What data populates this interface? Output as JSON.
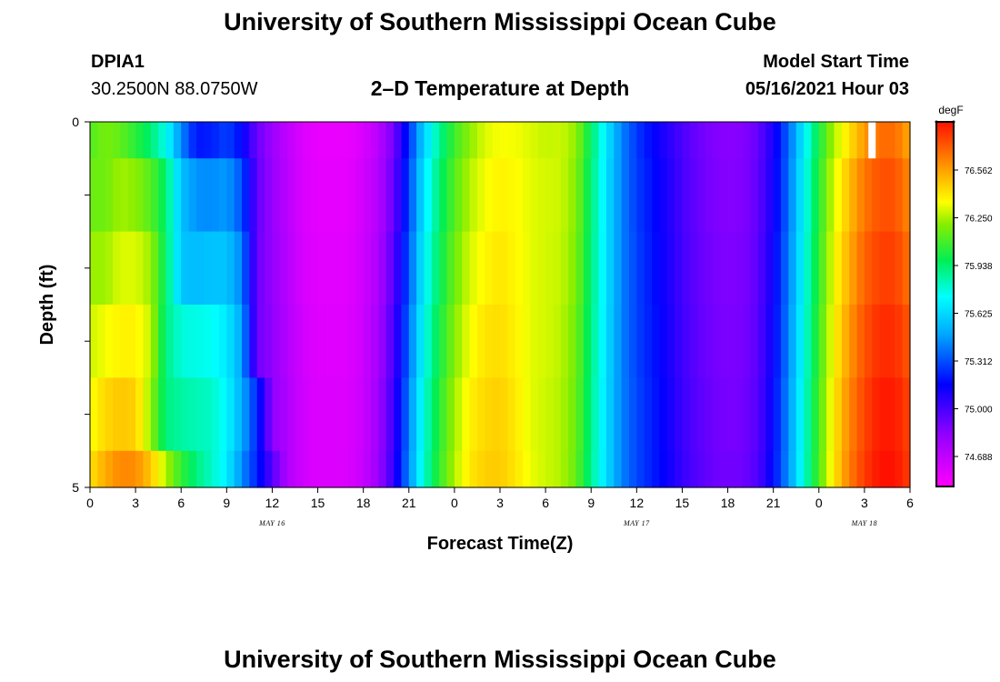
{
  "header": {
    "title_top": "University of Southern Mississippi Ocean Cube",
    "station_id": "DPIA1",
    "station_coords": "30.2500N  88.0750W",
    "plot_title": "2–D Temperature at Depth",
    "model_label": "Model Start Time",
    "model_time": "05/16/2021 Hour 03",
    "title_bottom": "University of Southern Mississippi Ocean Cube"
  },
  "chart_data": {
    "type": "heatmap",
    "xlabel": "Forecast Time(Z)",
    "ylabel": "Depth (ft)",
    "xlim": [
      0,
      54
    ],
    "ylim": [
      5,
      0
    ],
    "x_ticks": [
      {
        "hour": 0,
        "label": "0"
      },
      {
        "hour": 3,
        "label": "3"
      },
      {
        "hour": 6,
        "label": "6"
      },
      {
        "hour": 9,
        "label": "9"
      },
      {
        "hour": 12,
        "label": "12"
      },
      {
        "hour": 15,
        "label": "15"
      },
      {
        "hour": 18,
        "label": "18"
      },
      {
        "hour": 21,
        "label": "21"
      },
      {
        "hour": 24,
        "label": "0"
      },
      {
        "hour": 27,
        "label": "3"
      },
      {
        "hour": 30,
        "label": "6"
      },
      {
        "hour": 33,
        "label": "9"
      },
      {
        "hour": 36,
        "label": "12"
      },
      {
        "hour": 39,
        "label": "15"
      },
      {
        "hour": 42,
        "label": "18"
      },
      {
        "hour": 45,
        "label": "21"
      },
      {
        "hour": 48,
        "label": "0"
      },
      {
        "hour": 51,
        "label": "3"
      },
      {
        "hour": 54,
        "label": "6"
      }
    ],
    "date_labels": [
      {
        "hour": 12,
        "label": "MAY 16"
      },
      {
        "hour": 36,
        "label": "MAY 17"
      },
      {
        "hour": 51,
        "label": "MAY 18"
      }
    ],
    "y_tick_labels": [
      {
        "depth": 0,
        "label": "0"
      },
      {
        "depth": 5,
        "label": "5"
      }
    ],
    "y_minor_ticks": [
      1,
      2,
      3,
      4
    ],
    "depth_levels": [
      0.25,
      1.25,
      2.25,
      3.25,
      4.25,
      4.75
    ],
    "hours": [
      0,
      1,
      2,
      3,
      4,
      5,
      6,
      7,
      8,
      9,
      10,
      11,
      12,
      13,
      14,
      15,
      16,
      17,
      18,
      19,
      20,
      21,
      22,
      23,
      24,
      25,
      26,
      27,
      28,
      29,
      30,
      31,
      32,
      33,
      34,
      35,
      36,
      37,
      38,
      39,
      40,
      41,
      42,
      43,
      44,
      45,
      46,
      47,
      48,
      49,
      50,
      51,
      52,
      53,
      54
    ],
    "values_degF": [
      [
        76.25,
        76.32,
        76.28,
        76.18,
        76.07,
        75.89,
        75.56,
        75.33,
        75.35,
        75.42,
        75.3,
        75.05,
        74.93,
        74.82,
        74.73,
        74.69,
        74.69,
        74.69,
        74.74,
        74.84,
        75.03,
        75.38,
        75.74,
        76.02,
        76.22,
        76.35,
        76.45,
        76.49,
        76.48,
        76.45,
        76.42,
        76.43,
        76.36,
        76.09,
        75.81,
        75.55,
        75.4,
        75.3,
        75.21,
        75.12,
        75.05,
        75.0,
        74.98,
        74.99,
        75.06,
        75.24,
        75.49,
        75.82,
        76.15,
        76.4,
        76.56,
        76.72,
        76.82,
        76.82,
        76.68
      ],
      [
        76.3,
        76.3,
        76.38,
        76.35,
        76.26,
        76.08,
        75.69,
        75.58,
        75.57,
        75.6,
        75.45,
        75.07,
        74.94,
        74.84,
        74.74,
        74.7,
        74.7,
        74.7,
        74.76,
        74.86,
        75.06,
        75.42,
        75.8,
        76.07,
        76.26,
        76.4,
        76.48,
        76.52,
        76.5,
        76.46,
        76.44,
        76.43,
        76.34,
        76.07,
        75.79,
        75.55,
        75.41,
        75.32,
        75.23,
        75.13,
        75.06,
        75.01,
        74.99,
        75.0,
        75.07,
        75.25,
        75.51,
        75.85,
        76.18,
        76.45,
        76.64,
        76.8,
        76.88,
        76.88,
        76.75
      ],
      [
        76.37,
        76.37,
        76.45,
        76.45,
        76.37,
        76.09,
        75.7,
        75.68,
        75.7,
        75.7,
        75.55,
        75.05,
        74.95,
        74.85,
        74.75,
        74.71,
        74.71,
        74.71,
        74.77,
        74.88,
        75.1,
        75.46,
        75.84,
        76.1,
        76.3,
        76.44,
        76.51,
        76.55,
        76.51,
        76.46,
        76.44,
        76.42,
        76.33,
        76.06,
        75.79,
        75.55,
        75.42,
        75.33,
        75.24,
        75.14,
        75.07,
        75.02,
        75.0,
        75.01,
        75.08,
        75.27,
        75.53,
        75.87,
        76.2,
        76.48,
        76.68,
        76.84,
        76.92,
        76.92,
        76.8
      ],
      [
        76.43,
        76.48,
        76.52,
        76.52,
        76.42,
        76.04,
        75.92,
        75.9,
        75.88,
        75.81,
        75.62,
        75.04,
        74.96,
        74.86,
        74.76,
        74.72,
        74.72,
        74.72,
        74.78,
        74.9,
        75.13,
        75.5,
        75.88,
        76.14,
        76.34,
        76.48,
        76.55,
        76.57,
        76.52,
        76.46,
        76.44,
        76.41,
        76.31,
        76.05,
        75.78,
        75.55,
        75.42,
        75.34,
        75.25,
        75.15,
        75.08,
        75.03,
        75.01,
        75.02,
        75.09,
        75.28,
        75.55,
        75.89,
        76.22,
        76.51,
        76.72,
        76.88,
        76.96,
        76.96,
        76.86
      ],
      [
        76.48,
        76.58,
        76.62,
        76.6,
        76.36,
        76.05,
        76.0,
        75.97,
        75.95,
        75.85,
        75.64,
        75.36,
        74.97,
        74.87,
        74.77,
        74.73,
        74.73,
        74.73,
        74.79,
        74.92,
        75.16,
        75.54,
        75.92,
        76.18,
        76.38,
        76.52,
        76.58,
        76.6,
        76.54,
        76.46,
        76.43,
        76.4,
        76.3,
        76.04,
        75.77,
        75.55,
        75.43,
        75.35,
        75.26,
        75.16,
        75.09,
        75.04,
        75.02,
        75.03,
        75.1,
        75.3,
        75.57,
        75.91,
        76.24,
        76.54,
        76.76,
        76.91,
        77.0,
        77.0,
        76.9
      ],
      [
        76.55,
        76.68,
        76.76,
        76.75,
        76.62,
        76.4,
        76.2,
        76.05,
        75.95,
        75.82,
        75.57,
        75.35,
        75.1,
        74.87,
        74.77,
        74.73,
        74.73,
        74.73,
        74.8,
        74.93,
        75.18,
        75.56,
        75.94,
        76.2,
        76.4,
        76.54,
        76.6,
        76.61,
        76.55,
        76.47,
        76.43,
        76.4,
        76.29,
        76.03,
        75.77,
        75.55,
        75.43,
        75.35,
        75.27,
        75.17,
        75.1,
        75.05,
        75.03,
        75.04,
        75.11,
        75.31,
        75.58,
        75.92,
        76.25,
        76.55,
        76.78,
        76.93,
        77.02,
        77.02,
        76.92
      ]
    ],
    "colorbar": {
      "unit": "degF",
      "tick_labels": [
        "76.562",
        "76.250",
        "75.938",
        "75.625",
        "75.312",
        "75.000",
        "74.688"
      ]
    },
    "data_gap": {
      "hour": 51.5,
      "depth_range": [
        0,
        0.5
      ]
    }
  }
}
